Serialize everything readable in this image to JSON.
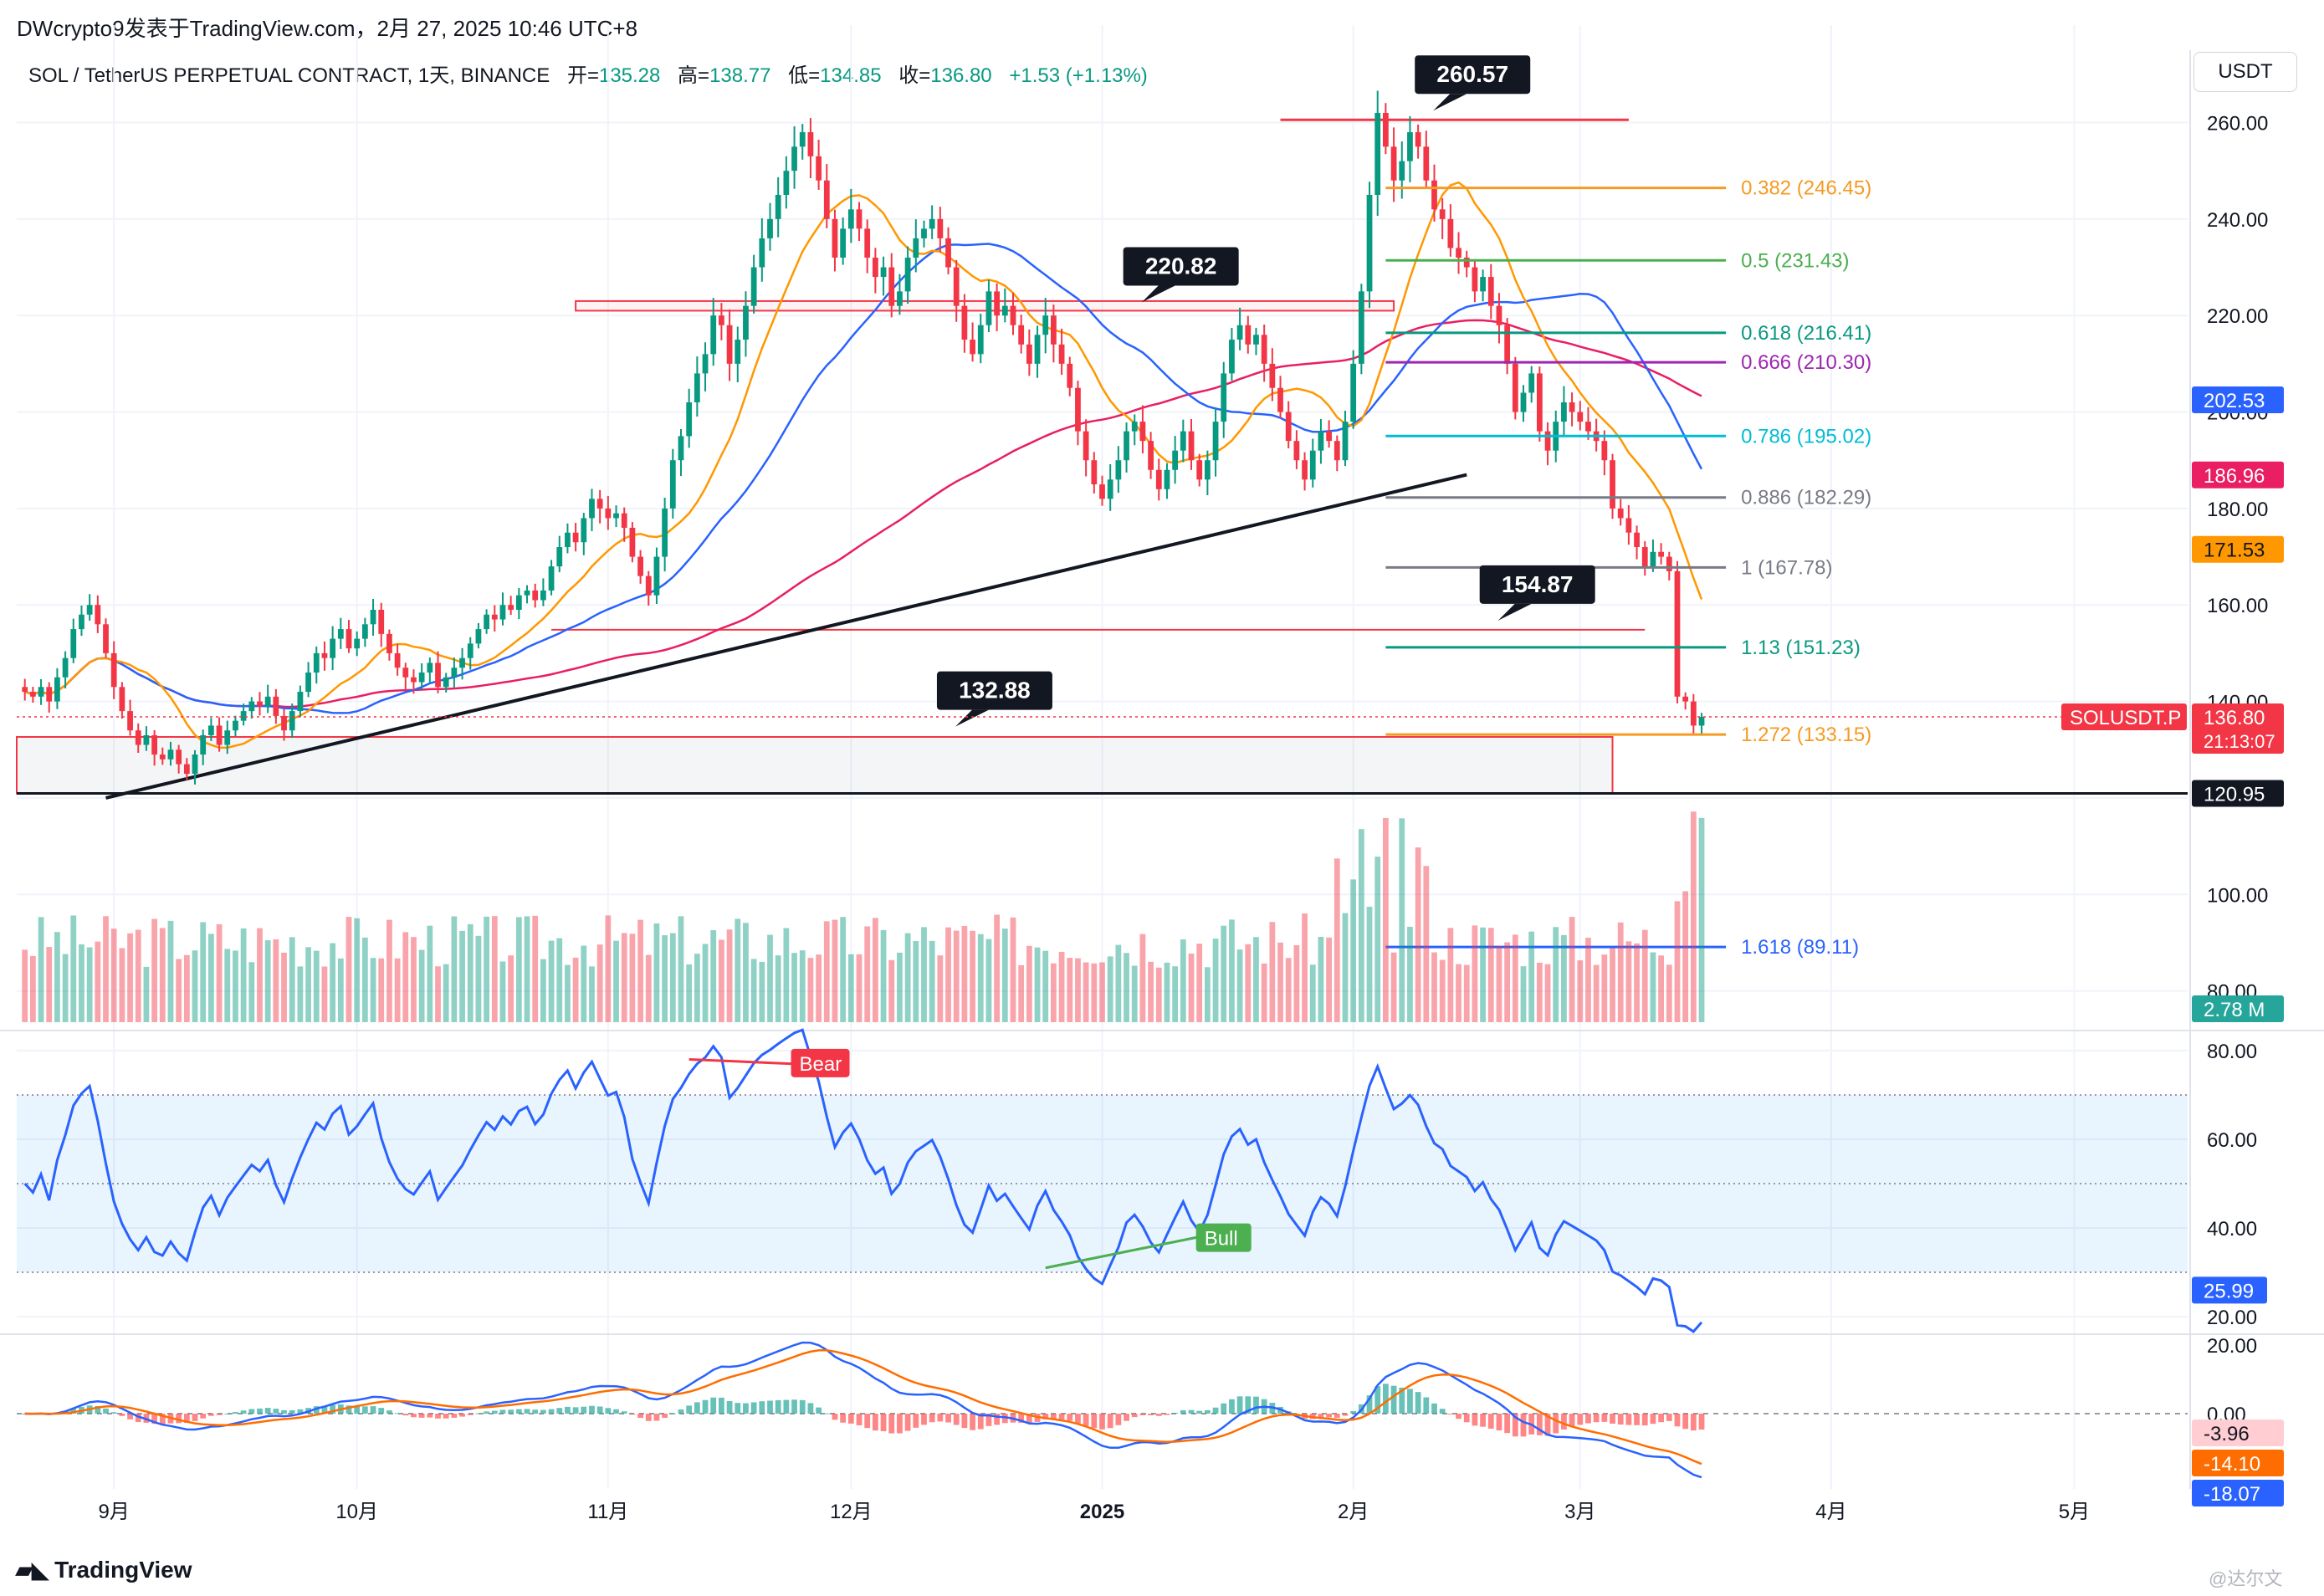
{
  "header": {
    "publish_line": "DWcrypto9发表于TradingView.com，2月 27, 2025 10:46 UTC+8"
  },
  "symbol": {
    "title": "SOL / TetherUS PERPETUAL CONTRACT, 1天, BINANCE",
    "open_label": "开=",
    "open_value": "135.28",
    "high_label": "高=",
    "high_value": "138.77",
    "low_label": "低=",
    "low_value": "134.85",
    "close_label": "收=",
    "close_value": "136.80",
    "change": "+1.53 (+1.13%)"
  },
  "currency": "USDT",
  "footer": {
    "brand": "TradingView",
    "watermark": "@达尔文"
  },
  "chart_data": [
    {
      "type": "candlestick",
      "name": "price",
      "ylim": [
        73,
        275
      ],
      "y_ticks": [
        80,
        100,
        120,
        140,
        160,
        180,
        200,
        220,
        240,
        260
      ],
      "y_tick_labels": [
        "80.00",
        "100.00",
        "120.00",
        "140.00",
        "160.00",
        "180.00",
        "200.00",
        "220.00",
        "240.00",
        "260.00"
      ],
      "x_axis": {
        "labels": [
          "9月",
          "10月",
          "11月",
          "12月",
          "2025",
          "2月",
          "3月",
          "4月",
          "5月"
        ],
        "dates": [
          "2024-09-01",
          "2024-10-01",
          "2024-11-01",
          "2024-12-01",
          "2025-01-01",
          "2025-02-01",
          "2025-03-01",
          "2025-04-01",
          "2025-05-01"
        ],
        "range": [
          "2024-08-20",
          "2025-05-15"
        ]
      },
      "candles_first_date": "2024-08-21",
      "candles_note_unit": "daily",
      "close": [
        142,
        141,
        143,
        140,
        145,
        149,
        155,
        158,
        160,
        156,
        150,
        143,
        138,
        134,
        131,
        133,
        129,
        128,
        130,
        127,
        125,
        129,
        133,
        135,
        131,
        134,
        136,
        138,
        140,
        139,
        141,
        137,
        134,
        138,
        142,
        146,
        150,
        149,
        153,
        155,
        151,
        153,
        156,
        159,
        154,
        150,
        147,
        145,
        144,
        146,
        148,
        143,
        145,
        147,
        149,
        152,
        155,
        158,
        157,
        160,
        159,
        162,
        163,
        161,
        163,
        168,
        172,
        175,
        173,
        178,
        182,
        180,
        178,
        179,
        176,
        170,
        166,
        162,
        170,
        180,
        190,
        195,
        202,
        208,
        212,
        220,
        218,
        210,
        215,
        222,
        230,
        236,
        240,
        245,
        250,
        255,
        258,
        253,
        248,
        240,
        232,
        238,
        242,
        238,
        232,
        228,
        230,
        222,
        225,
        232,
        236,
        238,
        240,
        236,
        230,
        222,
        215,
        212,
        218,
        225,
        220,
        222,
        218,
        214,
        210,
        216,
        220,
        214,
        210,
        205,
        196,
        190,
        185,
        182,
        186,
        190,
        196,
        198,
        194,
        188,
        184,
        188,
        192,
        196,
        190,
        186,
        190,
        198,
        208,
        215,
        218,
        214,
        216,
        210,
        205,
        200,
        194,
        190,
        186,
        192,
        196,
        194,
        190,
        198,
        210,
        225,
        245,
        262,
        255,
        248,
        252,
        258,
        255,
        248,
        242,
        240,
        234,
        232,
        230,
        225,
        228,
        222,
        218,
        210,
        200,
        204,
        208,
        196,
        192,
        198,
        202,
        200,
        198,
        196,
        194,
        190,
        180,
        178,
        175,
        172,
        168,
        171,
        170,
        167,
        141,
        140,
        135,
        136.8
      ],
      "open_first": 143,
      "levels_fib": [
        {
          "ratio": "0.382",
          "value": 246.45,
          "label": "0.382 (246.45)",
          "color": "#f59a23"
        },
        {
          "ratio": "0.5",
          "value": 231.43,
          "label": "0.5 (231.43)",
          "color": "#4caf50"
        },
        {
          "ratio": "0.618",
          "value": 216.41,
          "label": "0.618 (216.41)",
          "color": "#089981"
        },
        {
          "ratio": "0.666",
          "value": 210.3,
          "label": "0.666 (210.30)",
          "color": "#9c27b0"
        },
        {
          "ratio": "0.786",
          "value": 195.02,
          "label": "0.786 (195.02)",
          "color": "#00bcd4"
        },
        {
          "ratio": "0.886",
          "value": 182.29,
          "label": "0.886 (182.29)",
          "color": "#787b86"
        },
        {
          "ratio": "1",
          "value": 167.78,
          "label": "1 (167.78)",
          "color": "#787b86"
        },
        {
          "ratio": "1.13",
          "value": 151.23,
          "label": "1.13 (151.23)",
          "color": "#089981"
        },
        {
          "ratio": "1.272",
          "value": 133.15,
          "label": "1.272 (133.15)",
          "color": "#f59a23"
        },
        {
          "ratio": "1.618",
          "value": 89.11,
          "label": "1.618 (89.11)",
          "color": "#2962ff"
        }
      ],
      "callouts": [
        {
          "text": "260.57",
          "value": 260.57
        },
        {
          "text": "220.82",
          "value": 220.82
        },
        {
          "text": "154.87",
          "value": 154.87
        },
        {
          "text": "132.88",
          "value": 132.88
        }
      ],
      "support_level": {
        "value": 120.95,
        "label": "120.95"
      },
      "price_badges": [
        {
          "text": "202.53",
          "value": 202.53,
          "bg": "#2962ff",
          "fg": "#ffffff"
        },
        {
          "text": "186.96",
          "value": 186.96,
          "bg": "#e91e63",
          "fg": "#ffffff"
        },
        {
          "text": "171.53",
          "value": 171.53,
          "bg": "#ff9800",
          "fg": "#131722"
        }
      ],
      "last_price": {
        "symbol": "SOLUSDT.P",
        "price": "136.80",
        "countdown": "21:13:07",
        "value": 136.8
      },
      "volume_badge": "2.78 M"
    },
    {
      "type": "line",
      "name": "rsi",
      "ylim": [
        17,
        83
      ],
      "y_ticks": [
        20,
        40,
        60,
        80
      ],
      "y_tick_labels": [
        "20.00",
        "40.00",
        "60.00",
        "80.00"
      ],
      "band": [
        30,
        70
      ],
      "midline": 50,
      "last_value_label": "25.99",
      "annotations": [
        {
          "text": "Bear"
        },
        {
          "text": "Bull"
        }
      ]
    },
    {
      "type": "line",
      "name": "macd",
      "ylim": [
        -22,
        22
      ],
      "y_ticks": [
        20,
        0
      ],
      "y_tick_labels": [
        "20.00",
        "0.00"
      ],
      "badges": [
        {
          "text": "-3.96",
          "bg": "#ffcdd2",
          "fg": "#131722"
        },
        {
          "text": "-14.10",
          "bg": "#ff6d00",
          "fg": "#ffffff"
        },
        {
          "text": "-18.07",
          "bg": "#2962ff",
          "fg": "#ffffff"
        }
      ]
    }
  ]
}
